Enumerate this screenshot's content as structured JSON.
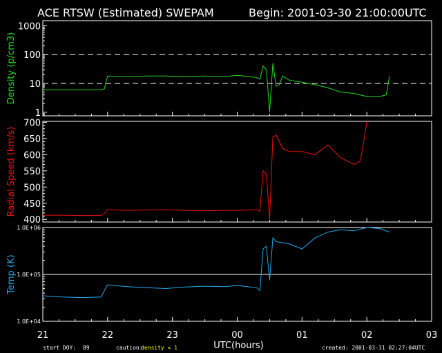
{
  "header": {
    "title": "ACE RTSW (Estimated) SWEPAM",
    "begin": "Begin: 2001-03-30 21:00:00UTC"
  },
  "footer": {
    "start_doy_label": "start DOY:",
    "start_doy": "89",
    "caution_label": "caution:",
    "caution_text": "density < 1",
    "created": "created: 2001-03-31 02:27:04UTC"
  },
  "colors": {
    "density": "#22dd22",
    "speed": "#ee1111",
    "temp": "#22aaee",
    "caution": "#ffff00",
    "axes": "#ffffff",
    "background": "#000000"
  },
  "chart_data": [
    {
      "type": "line",
      "ylabel": "Density (p/cm3)",
      "yscale": "log",
      "ylim": [
        0.75,
        1500
      ],
      "yticks": [
        "1",
        "10",
        "100",
        "1000"
      ],
      "reference_lines": [
        10,
        100
      ],
      "reference_line_style": "dashed",
      "xlim": [
        21,
        27
      ],
      "series": [
        {
          "x": [
            21.0,
            21.3,
            21.6,
            21.9,
            21.95,
            22.0,
            22.3,
            22.6,
            22.9,
            23.2,
            23.5,
            23.8,
            24.0,
            24.3,
            24.35,
            24.4,
            24.45,
            24.5,
            24.55,
            24.6,
            24.65,
            24.7,
            24.8,
            24.9,
            25.0,
            25.2,
            25.4,
            25.6,
            25.8,
            26.0,
            26.2,
            26.3,
            26.35
          ],
          "y": [
            6,
            6,
            6,
            6,
            6.5,
            18,
            17,
            18,
            18,
            17,
            18,
            17,
            19,
            16,
            14,
            40,
            30,
            1,
            50,
            8,
            9,
            18,
            13,
            12,
            11,
            9,
            7,
            5,
            4.5,
            3.5,
            3.5,
            4,
            18
          ]
        }
      ]
    },
    {
      "type": "line",
      "ylabel": "Radial Speed (km/s)",
      "ylim": [
        392,
        703
      ],
      "yticks": [
        "400",
        "450",
        "500",
        "550",
        "600",
        "650",
        "700"
      ],
      "xlim": [
        21,
        27
      ],
      "series": [
        {
          "x": [
            21.0,
            21.3,
            21.6,
            21.9,
            21.95,
            22.0,
            22.3,
            22.6,
            22.9,
            23.2,
            23.5,
            23.8,
            24.0,
            24.3,
            24.35,
            24.4,
            24.45,
            24.5,
            24.55,
            24.6,
            24.7,
            24.8,
            25.0,
            25.2,
            25.4,
            25.6,
            25.8,
            25.9,
            26.0
          ],
          "y": [
            413,
            413,
            412,
            412,
            418,
            430,
            428,
            429,
            430,
            428,
            427,
            428,
            428,
            430,
            425,
            550,
            540,
            400,
            655,
            660,
            620,
            610,
            610,
            600,
            630,
            590,
            570,
            580,
            700
          ]
        }
      ]
    },
    {
      "type": "line",
      "ylabel": "Temp (K)",
      "yscale": "log",
      "ylim": [
        10000,
        1000000
      ],
      "yticks": [
        "1.0E+04",
        "1.0E+05",
        "1.0E+06"
      ],
      "reference_lines": [
        100000
      ],
      "reference_line_style": "solid",
      "xlim": [
        21,
        27
      ],
      "xticks": [
        "21",
        "22",
        "23",
        "00",
        "01",
        "02",
        "03"
      ],
      "xlabel": "UTC(hours)",
      "series": [
        {
          "x": [
            21.0,
            21.3,
            21.6,
            21.9,
            21.95,
            22.0,
            22.3,
            22.6,
            22.9,
            23.2,
            23.5,
            23.8,
            24.0,
            24.3,
            24.35,
            24.4,
            24.45,
            24.5,
            24.55,
            24.6,
            24.8,
            25.0,
            25.2,
            25.4,
            25.6,
            25.8,
            26.0,
            26.2,
            26.35
          ],
          "y": [
            35000,
            33000,
            32000,
            33000,
            45000,
            60000,
            55000,
            52000,
            50000,
            54000,
            56000,
            55000,
            58000,
            52000,
            45000,
            350000,
            400000,
            75000,
            600000,
            500000,
            450000,
            350000,
            600000,
            800000,
            900000,
            850000,
            1000000,
            950000,
            800000
          ]
        }
      ]
    }
  ]
}
